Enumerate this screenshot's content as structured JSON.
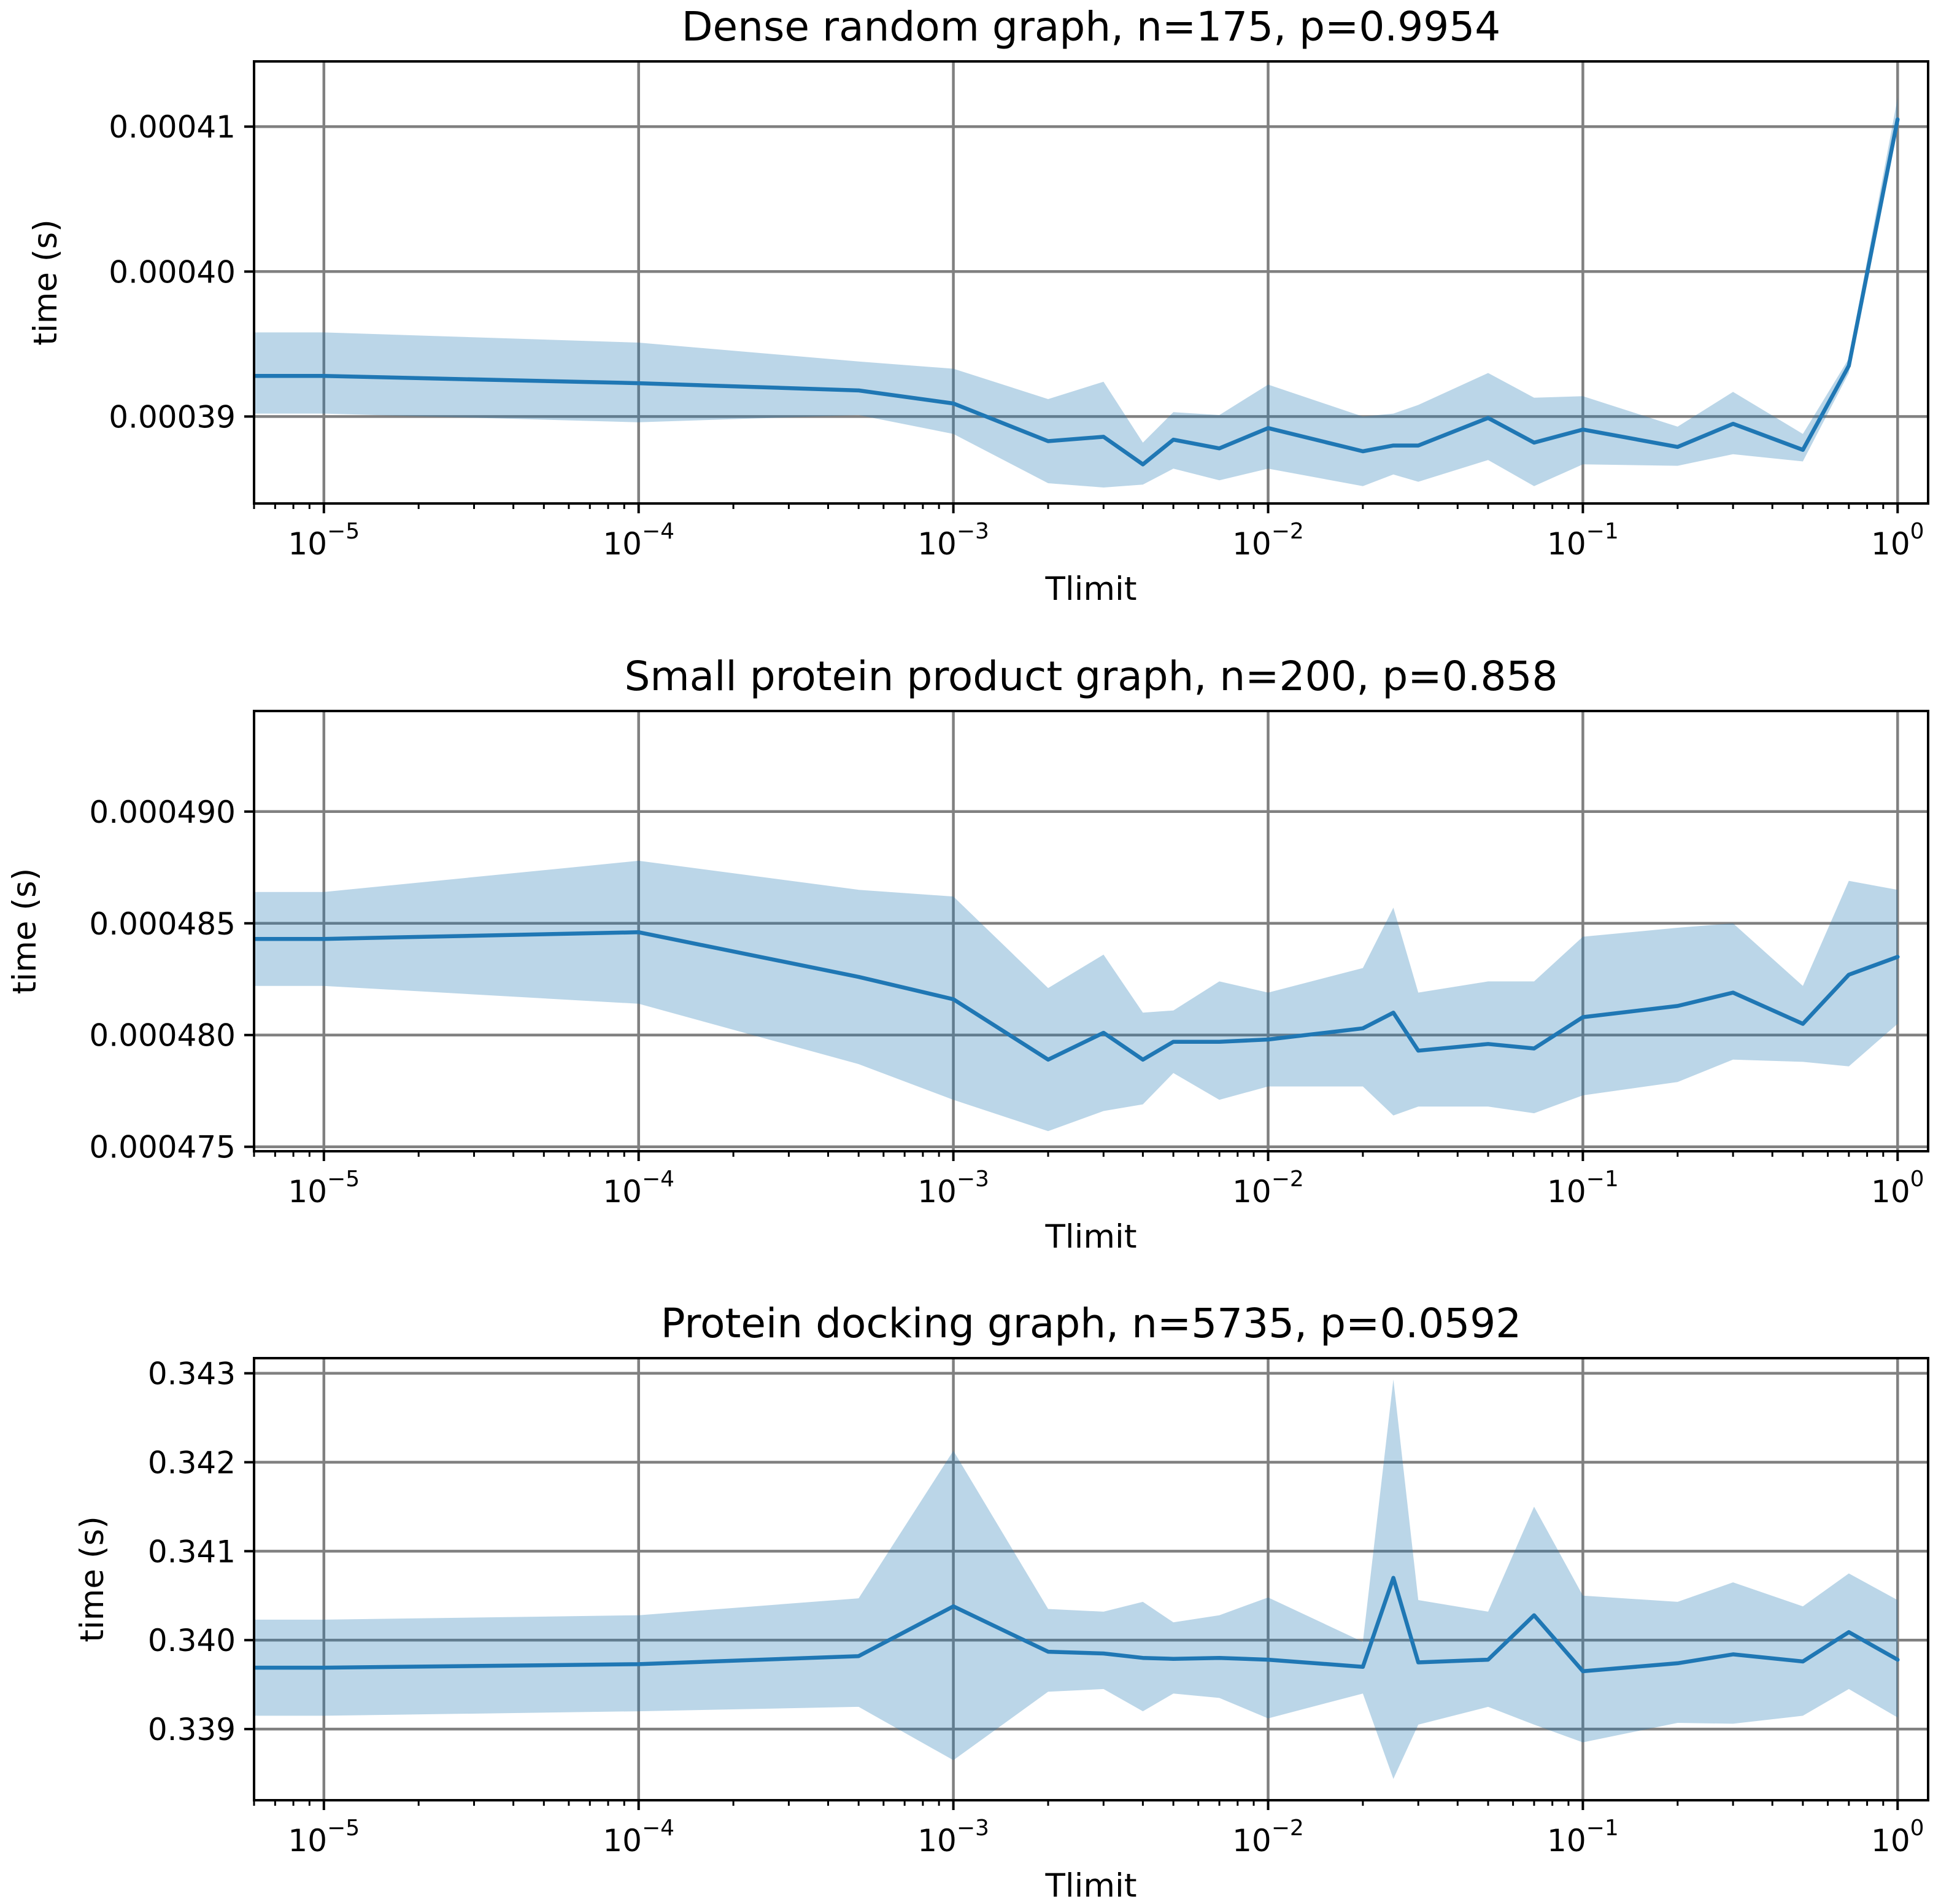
{
  "style": {
    "line_color": "#1f77b4",
    "band_color": "#1f77b4",
    "band_opacity": 0.3,
    "grid_color": "#808080"
  },
  "chart_data": [
    {
      "type": "line",
      "title": "Dense random graph, n=175, p=0.9954",
      "xlabel": "Tlimit",
      "ylabel": "time (s)",
      "xscale": "log",
      "xlim": [
        6e-06,
        1.25
      ],
      "ylim": [
        0.000384,
        0.0004145
      ],
      "grid": true,
      "x_ticks": [
        {
          "value": 1e-05,
          "base": "10",
          "exp": "−5"
        },
        {
          "value": 0.0001,
          "base": "10",
          "exp": "−4"
        },
        {
          "value": 0.001,
          "base": "10",
          "exp": "−3"
        },
        {
          "value": 0.01,
          "base": "10",
          "exp": "−2"
        },
        {
          "value": 0.1,
          "base": "10",
          "exp": "−1"
        },
        {
          "value": 1,
          "base": "10",
          "exp": "0"
        }
      ],
      "y_ticks": [
        {
          "value": 0.00039,
          "label": "0.00039"
        },
        {
          "value": 0.0004,
          "label": "0.00040"
        },
        {
          "value": 0.00041,
          "label": "0.00041"
        }
      ],
      "x": [
        6e-06,
        1e-05,
        0.0001,
        0.0005,
        0.001,
        0.002,
        0.003,
        0.004,
        0.005,
        0.007,
        0.01,
        0.02,
        0.025,
        0.03,
        0.05,
        0.07,
        0.1,
        0.2,
        0.3,
        0.5,
        0.7,
        1.0
      ],
      "series": [
        {
          "name": "mean",
          "values": [
            0.0003928,
            0.0003928,
            0.0003923,
            0.0003918,
            0.0003909,
            0.0003883,
            0.0003886,
            0.0003867,
            0.0003884,
            0.0003878,
            0.0003892,
            0.0003876,
            0.000388,
            0.000388,
            0.0003899,
            0.0003882,
            0.0003891,
            0.0003879,
            0.0003895,
            0.0003877,
            0.0003935,
            0.0004105
          ],
          "lower": [
            0.0003902,
            0.0003902,
            0.0003896,
            0.0003901,
            0.0003888,
            0.0003854,
            0.0003851,
            0.0003853,
            0.0003864,
            0.0003856,
            0.0003864,
            0.0003852,
            0.000386,
            0.0003855,
            0.000387,
            0.0003852,
            0.0003867,
            0.0003866,
            0.0003874,
            0.0003869,
            0.000393,
            0.00041
          ],
          "upper": [
            0.0003958,
            0.0003958,
            0.0003951,
            0.0003938,
            0.0003933,
            0.0003912,
            0.0003924,
            0.0003882,
            0.0003903,
            0.0003901,
            0.0003922,
            0.00039,
            0.0003902,
            0.0003908,
            0.000393,
            0.0003913,
            0.0003914,
            0.0003893,
            0.0003917,
            0.0003888,
            0.000394,
            0.000412
          ]
        }
      ]
    },
    {
      "type": "line",
      "title": "Small protein product graph, n=200, p=0.858",
      "xlabel": "Tlimit",
      "ylabel": "time (s)",
      "xscale": "log",
      "xlim": [
        6e-06,
        1.25
      ],
      "ylim": [
        0.0004748,
        0.0004945
      ],
      "grid": true,
      "x_ticks": [
        {
          "value": 1e-05,
          "base": "10",
          "exp": "−5"
        },
        {
          "value": 0.0001,
          "base": "10",
          "exp": "−4"
        },
        {
          "value": 0.001,
          "base": "10",
          "exp": "−3"
        },
        {
          "value": 0.01,
          "base": "10",
          "exp": "−2"
        },
        {
          "value": 0.1,
          "base": "10",
          "exp": "−1"
        },
        {
          "value": 1,
          "base": "10",
          "exp": "0"
        }
      ],
      "y_ticks": [
        {
          "value": 0.000475,
          "label": "0.000475"
        },
        {
          "value": 0.00048,
          "label": "0.000480"
        },
        {
          "value": 0.000485,
          "label": "0.000485"
        },
        {
          "value": 0.00049,
          "label": "0.000490"
        }
      ],
      "x": [
        6e-06,
        1e-05,
        0.0001,
        0.0005,
        0.001,
        0.002,
        0.003,
        0.004,
        0.005,
        0.007,
        0.01,
        0.02,
        0.025,
        0.03,
        0.05,
        0.07,
        0.1,
        0.2,
        0.3,
        0.5,
        0.7,
        1.0
      ],
      "series": [
        {
          "name": "mean",
          "values": [
            0.0004843,
            0.0004843,
            0.0004846,
            0.0004826,
            0.0004816,
            0.0004789,
            0.0004801,
            0.0004789,
            0.0004797,
            0.0004797,
            0.0004798,
            0.0004803,
            0.000481,
            0.0004793,
            0.0004796,
            0.0004794,
            0.0004808,
            0.0004813,
            0.0004819,
            0.0004805,
            0.0004827,
            0.0004835
          ],
          "lower": [
            0.0004822,
            0.0004822,
            0.0004814,
            0.0004787,
            0.0004771,
            0.0004757,
            0.0004766,
            0.0004769,
            0.0004783,
            0.0004771,
            0.0004777,
            0.0004777,
            0.0004764,
            0.0004768,
            0.0004768,
            0.0004765,
            0.0004773,
            0.0004779,
            0.0004789,
            0.0004788,
            0.0004786,
            0.0004805
          ],
          "upper": [
            0.0004864,
            0.0004864,
            0.0004878,
            0.0004865,
            0.0004862,
            0.0004821,
            0.0004836,
            0.000481,
            0.0004811,
            0.0004824,
            0.0004819,
            0.000483,
            0.0004857,
            0.0004819,
            0.0004824,
            0.0004824,
            0.0004844,
            0.0004848,
            0.000485,
            0.0004822,
            0.0004869,
            0.0004865
          ]
        }
      ]
    },
    {
      "type": "line",
      "title": "Protein docking graph, n=5735, p=0.0592",
      "xlabel": "Tlimit",
      "ylabel": "time (s)",
      "xscale": "log",
      "xlim": [
        6e-06,
        1.25
      ],
      "ylim": [
        0.3382,
        0.34317
      ],
      "grid": true,
      "x_ticks": [
        {
          "value": 1e-05,
          "base": "10",
          "exp": "−5"
        },
        {
          "value": 0.0001,
          "base": "10",
          "exp": "−4"
        },
        {
          "value": 0.001,
          "base": "10",
          "exp": "−3"
        },
        {
          "value": 0.01,
          "base": "10",
          "exp": "−2"
        },
        {
          "value": 0.1,
          "base": "10",
          "exp": "−1"
        },
        {
          "value": 1,
          "base": "10",
          "exp": "0"
        }
      ],
      "y_ticks": [
        {
          "value": 0.339,
          "label": "0.339"
        },
        {
          "value": 0.34,
          "label": "0.340"
        },
        {
          "value": 0.341,
          "label": "0.341"
        },
        {
          "value": 0.342,
          "label": "0.342"
        },
        {
          "value": 0.343,
          "label": "0.343"
        }
      ],
      "x": [
        6e-06,
        1e-05,
        0.0001,
        0.0005,
        0.001,
        0.002,
        0.003,
        0.004,
        0.005,
        0.007,
        0.01,
        0.02,
        0.025,
        0.03,
        0.05,
        0.07,
        0.1,
        0.2,
        0.3,
        0.5,
        0.7,
        1.0
      ],
      "series": [
        {
          "name": "mean",
          "values": [
            0.33969,
            0.33969,
            0.33973,
            0.33982,
            0.34038,
            0.33987,
            0.33985,
            0.3398,
            0.33979,
            0.3398,
            0.33978,
            0.3397,
            0.3407,
            0.33975,
            0.33978,
            0.34028,
            0.33965,
            0.33974,
            0.33984,
            0.33976,
            0.34009,
            0.33978
          ],
          "lower": [
            0.33915,
            0.33915,
            0.3392,
            0.33925,
            0.33865,
            0.33942,
            0.33945,
            0.3392,
            0.3394,
            0.33935,
            0.33912,
            0.3394,
            0.33844,
            0.33905,
            0.33925,
            0.33905,
            0.33885,
            0.33907,
            0.33906,
            0.33915,
            0.33945,
            0.33913
          ],
          "upper": [
            0.34023,
            0.34023,
            0.34028,
            0.34047,
            0.34213,
            0.34035,
            0.34032,
            0.34043,
            0.3402,
            0.34028,
            0.34048,
            0.33998,
            0.34293,
            0.34045,
            0.34032,
            0.3415,
            0.3405,
            0.34043,
            0.34065,
            0.34038,
            0.34075,
            0.34045
          ]
        }
      ]
    }
  ]
}
